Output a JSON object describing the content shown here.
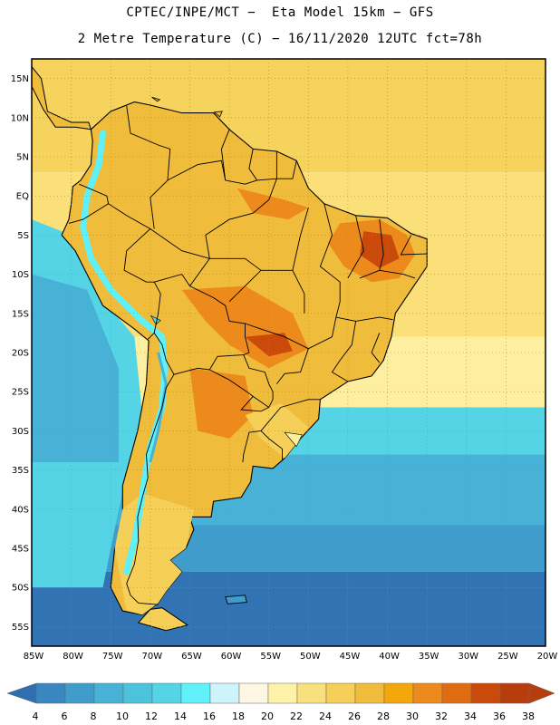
{
  "header": {
    "line1": "CPTEC/INPE/MCT −  Eta Model 15km − GFS",
    "line2": "2 Metre Temperature (C) − 16/11/2020 12UTC fct=78h"
  },
  "map": {
    "lon_range": [
      -85,
      -20
    ],
    "lat_range": [
      -57.5,
      17.5
    ],
    "lon_ticks": [
      {
        "value": -85,
        "label": "85W"
      },
      {
        "value": -80,
        "label": "80W"
      },
      {
        "value": -75,
        "label": "75W"
      },
      {
        "value": -70,
        "label": "70W"
      },
      {
        "value": -65,
        "label": "65W"
      },
      {
        "value": -60,
        "label": "60W"
      },
      {
        "value": -55,
        "label": "55W"
      },
      {
        "value": -50,
        "label": "50W"
      },
      {
        "value": -45,
        "label": "45W"
      },
      {
        "value": -40,
        "label": "40W"
      },
      {
        "value": -35,
        "label": "35W"
      },
      {
        "value": -30,
        "label": "30W"
      },
      {
        "value": -25,
        "label": "25W"
      },
      {
        "value": -20,
        "label": "20W"
      }
    ],
    "lat_ticks": [
      {
        "value": 15,
        "label": "15N"
      },
      {
        "value": 10,
        "label": "10N"
      },
      {
        "value": 5,
        "label": "5N"
      },
      {
        "value": 0,
        "label": "EQ"
      },
      {
        "value": -5,
        "label": "5S"
      },
      {
        "value": -10,
        "label": "10S"
      },
      {
        "value": -15,
        "label": "15S"
      },
      {
        "value": -20,
        "label": "20S"
      },
      {
        "value": -25,
        "label": "25S"
      },
      {
        "value": -30,
        "label": "30S"
      },
      {
        "value": -35,
        "label": "35S"
      },
      {
        "value": -40,
        "label": "40S"
      },
      {
        "value": -45,
        "label": "45S"
      },
      {
        "value": -50,
        "label": "50S"
      },
      {
        "value": -55,
        "label": "55S"
      }
    ]
  },
  "colorbar": {
    "levels": [
      "4",
      "6",
      "8",
      "10",
      "12",
      "14",
      "16",
      "18",
      "20",
      "22",
      "24",
      "26",
      "28",
      "30",
      "32",
      "34",
      "36",
      "38"
    ],
    "colors": [
      "#2f6fb0",
      "#3a86c0",
      "#3f9ccb",
      "#47b2d6",
      "#4cc2dc",
      "#55d4e6",
      "#5ff0f8",
      "#cdf3fb",
      "#fdf6e3",
      "#fdf2a8",
      "#f9e07e",
      "#f5cf57",
      "#efbc3c",
      "#f3a70c",
      "#ec8a1c",
      "#e06c12",
      "#c94a0a",
      "#b83d0c"
    ]
  },
  "palette": {
    "ocean_north": "#f6d35c",
    "ocean_trop": "#fbe07a",
    "ocean_mid": "#fdeea0",
    "ocean_cool1": "#55d4e6",
    "ocean_cool2": "#47b2d6",
    "ocean_cool3": "#3f9ccb",
    "ocean_cold": "#3173b3",
    "land_base": "#efbc3c",
    "land_hot": "#ec8a1c",
    "land_veryhot": "#c94a0a",
    "land_south": "#f5cf57",
    "andes": "#5ff0f8"
  }
}
